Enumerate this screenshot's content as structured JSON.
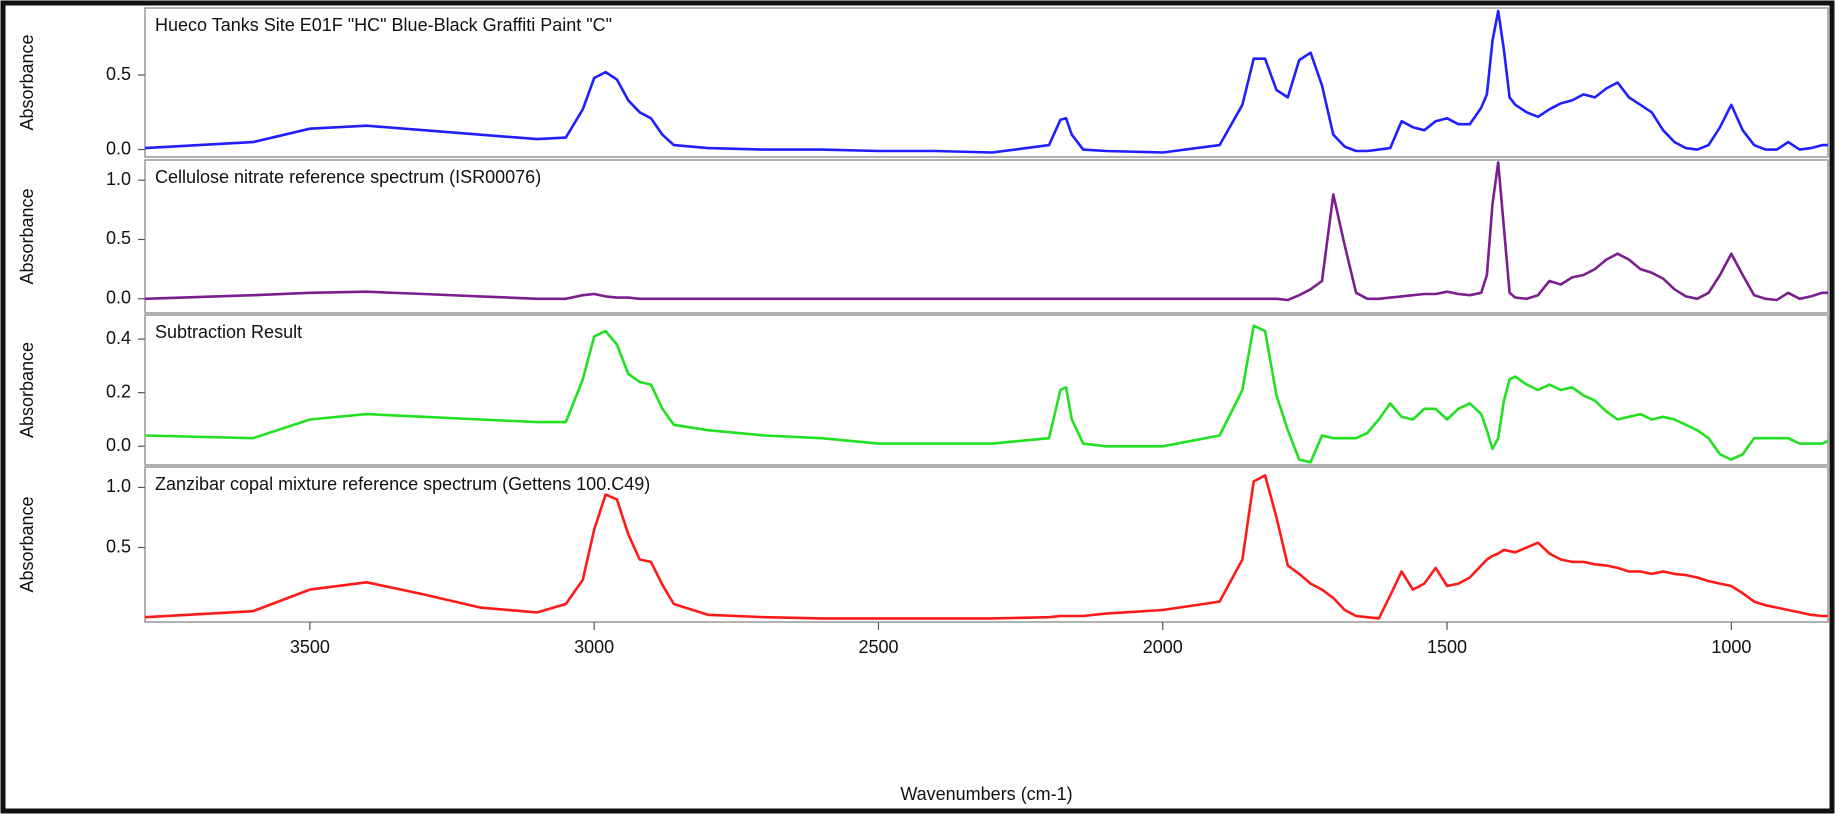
{
  "chart_data": [
    {
      "type": "line",
      "title": "Hueco Tanks Site E01F \"HC\" Blue-Black Graffiti Paint \"C\"",
      "ylabel": "Absorbance",
      "color": "#1f1fff",
      "x": [
        3790,
        3600,
        3500,
        3400,
        3300,
        3200,
        3100,
        3050,
        3020,
        3000,
        2980,
        2960,
        2940,
        2920,
        2900,
        2880,
        2860,
        2800,
        2700,
        2600,
        2500,
        2400,
        2300,
        2200,
        2180,
        2170,
        2160,
        2140,
        2100,
        2000,
        1900,
        1860,
        1840,
        1820,
        1800,
        1780,
        1760,
        1740,
        1720,
        1700,
        1680,
        1660,
        1640,
        1620,
        1600,
        1580,
        1560,
        1540,
        1520,
        1500,
        1480,
        1460,
        1440,
        1430,
        1420,
        1410,
        1400,
        1390,
        1380,
        1360,
        1340,
        1320,
        1300,
        1280,
        1260,
        1240,
        1220,
        1200,
        1180,
        1160,
        1140,
        1120,
        1100,
        1080,
        1060,
        1040,
        1020,
        1000,
        980,
        960,
        940,
        920,
        900,
        880,
        860,
        840,
        830
      ],
      "values": [
        0.01,
        0.05,
        0.14,
        0.16,
        0.13,
        0.1,
        0.07,
        0.08,
        0.27,
        0.48,
        0.52,
        0.47,
        0.33,
        0.25,
        0.21,
        0.1,
        0.03,
        0.01,
        0.0,
        0.0,
        -0.01,
        -0.01,
        -0.02,
        0.03,
        0.2,
        0.21,
        0.1,
        0.0,
        -0.01,
        -0.02,
        0.03,
        0.3,
        0.61,
        0.61,
        0.4,
        0.35,
        0.6,
        0.65,
        0.43,
        0.1,
        0.02,
        -0.01,
        -0.01,
        0.0,
        0.01,
        0.19,
        0.15,
        0.13,
        0.19,
        0.21,
        0.17,
        0.17,
        0.28,
        0.37,
        0.73,
        0.93,
        0.67,
        0.35,
        0.3,
        0.25,
        0.22,
        0.27,
        0.31,
        0.33,
        0.37,
        0.35,
        0.41,
        0.45,
        0.35,
        0.3,
        0.25,
        0.13,
        0.05,
        0.01,
        0.0,
        0.03,
        0.15,
        0.3,
        0.13,
        0.03,
        0.0,
        0.0,
        0.05,
        0.0,
        0.01,
        0.03,
        0.03
      ],
      "xlim": [
        3790,
        830
      ],
      "ylim": [
        -0.05,
        0.95
      ],
      "yticks": [
        {
          "value": 0,
          "label": "0.0"
        },
        0.5
      ]
    },
    {
      "type": "line",
      "title": "Cellulose nitrate reference spectrum (ISR00076)",
      "ylabel": "Absorbance",
      "color": "#7b1f8f",
      "x": [
        3790,
        3600,
        3500,
        3400,
        3300,
        3200,
        3100,
        3050,
        3020,
        3000,
        2980,
        2960,
        2940,
        2920,
        2900,
        2880,
        2860,
        2800,
        2700,
        2600,
        2500,
        2400,
        2300,
        2200,
        2180,
        2170,
        2160,
        2140,
        2100,
        2000,
        1900,
        1860,
        1840,
        1820,
        1800,
        1780,
        1760,
        1740,
        1720,
        1700,
        1680,
        1660,
        1640,
        1620,
        1600,
        1580,
        1560,
        1540,
        1520,
        1500,
        1480,
        1460,
        1440,
        1430,
        1420,
        1410,
        1400,
        1390,
        1380,
        1360,
        1340,
        1320,
        1300,
        1280,
        1260,
        1240,
        1220,
        1200,
        1180,
        1160,
        1140,
        1120,
        1100,
        1080,
        1060,
        1040,
        1020,
        1000,
        980,
        960,
        940,
        920,
        900,
        880,
        860,
        840,
        830
      ],
      "values": [
        0.0,
        0.03,
        0.05,
        0.06,
        0.04,
        0.02,
        0.0,
        0.0,
        0.03,
        0.04,
        0.02,
        0.01,
        0.01,
        0.0,
        0.0,
        0.0,
        0.0,
        0.0,
        0.0,
        0.0,
        0.0,
        0.0,
        0.0,
        0.0,
        0.0,
        0.0,
        0.0,
        0.0,
        0.0,
        0.0,
        0.0,
        0.0,
        0.0,
        0.0,
        0.0,
        -0.01,
        0.03,
        0.08,
        0.15,
        0.88,
        0.45,
        0.05,
        0.0,
        0.0,
        0.01,
        0.02,
        0.03,
        0.04,
        0.04,
        0.06,
        0.04,
        0.03,
        0.05,
        0.2,
        0.8,
        1.15,
        0.6,
        0.05,
        0.01,
        0.0,
        0.03,
        0.15,
        0.12,
        0.18,
        0.2,
        0.25,
        0.33,
        0.38,
        0.33,
        0.25,
        0.22,
        0.17,
        0.08,
        0.02,
        0.0,
        0.05,
        0.2,
        0.38,
        0.2,
        0.03,
        0.0,
        -0.01,
        0.05,
        0.0,
        0.02,
        0.05,
        0.05
      ],
      "xlim": [
        3790,
        830
      ],
      "ylim": [
        -0.12,
        1.17
      ],
      "yticks": [
        {
          "value": 0,
          "label": "0.0"
        },
        0.5,
        {
          "value": 1,
          "label": "1.0"
        }
      ]
    },
    {
      "type": "line",
      "title": "Subtraction Result",
      "ylabel": "Absorbance",
      "color": "#22e022",
      "x": [
        3790,
        3600,
        3500,
        3400,
        3300,
        3200,
        3100,
        3050,
        3020,
        3000,
        2980,
        2960,
        2940,
        2920,
        2900,
        2880,
        2860,
        2800,
        2700,
        2600,
        2500,
        2400,
        2300,
        2200,
        2180,
        2170,
        2160,
        2140,
        2100,
        2000,
        1900,
        1860,
        1840,
        1820,
        1800,
        1780,
        1760,
        1740,
        1720,
        1700,
        1680,
        1660,
        1640,
        1620,
        1600,
        1580,
        1560,
        1540,
        1520,
        1500,
        1480,
        1460,
        1440,
        1430,
        1420,
        1410,
        1400,
        1390,
        1380,
        1360,
        1340,
        1320,
        1300,
        1280,
        1260,
        1240,
        1220,
        1200,
        1180,
        1160,
        1140,
        1120,
        1100,
        1080,
        1060,
        1040,
        1020,
        1000,
        980,
        960,
        940,
        920,
        900,
        880,
        860,
        840,
        830
      ],
      "values": [
        0.04,
        0.03,
        0.1,
        0.12,
        0.11,
        0.1,
        0.09,
        0.09,
        0.25,
        0.41,
        0.43,
        0.38,
        0.27,
        0.24,
        0.23,
        0.14,
        0.08,
        0.06,
        0.04,
        0.03,
        0.01,
        0.01,
        0.01,
        0.03,
        0.21,
        0.22,
        0.1,
        0.01,
        0.0,
        0.0,
        0.04,
        0.21,
        0.45,
        0.43,
        0.19,
        0.06,
        -0.05,
        -0.06,
        0.04,
        0.03,
        0.03,
        0.03,
        0.05,
        0.1,
        0.16,
        0.11,
        0.1,
        0.14,
        0.14,
        0.1,
        0.14,
        0.16,
        0.12,
        0.06,
        -0.01,
        0.03,
        0.17,
        0.25,
        0.26,
        0.23,
        0.21,
        0.23,
        0.21,
        0.22,
        0.19,
        0.17,
        0.13,
        0.1,
        0.11,
        0.12,
        0.1,
        0.11,
        0.1,
        0.08,
        0.06,
        0.03,
        -0.03,
        -0.05,
        -0.03,
        0.03,
        0.03,
        0.03,
        0.03,
        0.01,
        0.01,
        0.01,
        0.02
      ],
      "xlim": [
        3790,
        830
      ],
      "ylim": [
        -0.07,
        0.49
      ],
      "yticks": [
        {
          "value": 0,
          "label": "0.0"
        },
        0.2,
        0.4
      ]
    },
    {
      "type": "line",
      "title": "Zanzibar copal mixture reference spectrum (Gettens 100.C49)",
      "ylabel": "Absorbance",
      "color": "#ff1a1a",
      "x": [
        3790,
        3600,
        3500,
        3400,
        3300,
        3200,
        3100,
        3050,
        3020,
        3000,
        2980,
        2960,
        2940,
        2920,
        2900,
        2880,
        2860,
        2800,
        2700,
        2600,
        2500,
        2400,
        2300,
        2200,
        2180,
        2170,
        2160,
        2140,
        2100,
        2000,
        1900,
        1860,
        1840,
        1820,
        1800,
        1780,
        1760,
        1740,
        1720,
        1700,
        1680,
        1660,
        1640,
        1620,
        1600,
        1580,
        1560,
        1540,
        1520,
        1500,
        1480,
        1460,
        1440,
        1430,
        1420,
        1410,
        1400,
        1390,
        1380,
        1360,
        1340,
        1320,
        1300,
        1280,
        1260,
        1240,
        1220,
        1200,
        1180,
        1160,
        1140,
        1120,
        1100,
        1080,
        1060,
        1040,
        1020,
        1000,
        980,
        960,
        940,
        920,
        900,
        880,
        860,
        840,
        830
      ],
      "values": [
        -0.08,
        -0.03,
        0.15,
        0.21,
        0.11,
        0.0,
        -0.04,
        0.03,
        0.23,
        0.65,
        0.94,
        0.9,
        0.61,
        0.4,
        0.38,
        0.19,
        0.03,
        -0.06,
        -0.08,
        -0.09,
        -0.09,
        -0.09,
        -0.09,
        -0.08,
        -0.07,
        -0.07,
        -0.07,
        -0.07,
        -0.05,
        -0.02,
        0.05,
        0.4,
        1.05,
        1.1,
        0.75,
        0.35,
        0.28,
        0.2,
        0.15,
        0.08,
        -0.02,
        -0.07,
        -0.08,
        -0.09,
        0.1,
        0.3,
        0.15,
        0.2,
        0.33,
        0.18,
        0.2,
        0.25,
        0.35,
        0.4,
        0.43,
        0.45,
        0.48,
        0.47,
        0.46,
        0.5,
        0.54,
        0.45,
        0.4,
        0.38,
        0.38,
        0.36,
        0.35,
        0.33,
        0.3,
        0.3,
        0.28,
        0.3,
        0.28,
        0.27,
        0.25,
        0.22,
        0.2,
        0.18,
        0.12,
        0.05,
        0.02,
        0.0,
        -0.02,
        -0.04,
        -0.06,
        -0.07,
        -0.07
      ],
      "xlim": [
        3790,
        830
      ],
      "ylim": [
        -0.12,
        1.17
      ],
      "yticks": [
        0.5,
        {
          "value": 1,
          "label": "1.0"
        }
      ],
      "xticks": [
        3500,
        3000,
        2500,
        2000,
        1500,
        1000
      ],
      "xlabel": "Wavenumbers (cm-1)"
    }
  ]
}
